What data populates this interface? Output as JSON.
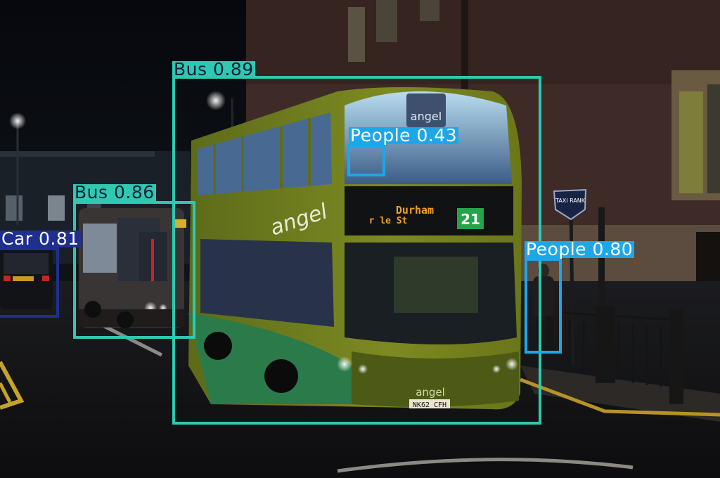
{
  "scene": {
    "bus_front_logo": "angel",
    "bus_side_logo": "angel",
    "bus_lower_logo": "angel",
    "destination_text": "Durham",
    "destination_sub": "r le St",
    "route_number": "21",
    "plate": "NK62 CFH",
    "sign_text": "TAXI RANK"
  },
  "detections": [
    {
      "label": "Bus",
      "score": "0.89",
      "color": "#2ec9b0",
      "text_color": "#0c1f3a"
    },
    {
      "label": "Bus",
      "score": "0.86",
      "color": "#2ec9b0",
      "text_color": "#0c1f3a"
    },
    {
      "label": "Car",
      "score": "0.81",
      "color": "#1f2f8f",
      "text_color": "#ffffff"
    },
    {
      "label": "People",
      "score": "0.43",
      "color": "#1ea7e8",
      "text_color": "#ffffff"
    },
    {
      "label": "People",
      "score": "0.80",
      "color": "#1ea7e8",
      "text_color": "#ffffff"
    }
  ]
}
